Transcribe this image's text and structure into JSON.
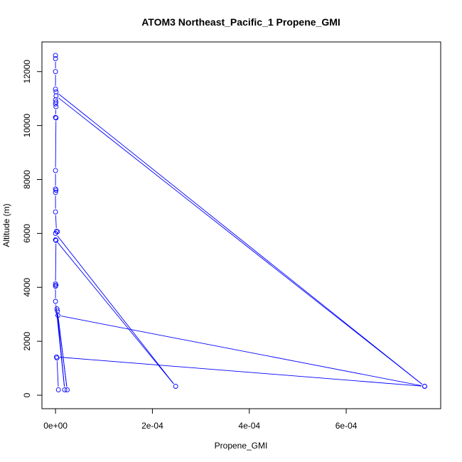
{
  "chart_data": {
    "type": "scatter",
    "title": "ATOM3 Northeast_Pacific_1 Propene_GMI",
    "xlabel": "Propene_GMI",
    "ylabel": "Altitude (m)",
    "xlim": [
      -2.8e-05,
      0.000795
    ],
    "ylim": [
      -500,
      13100
    ],
    "x_ticks": [
      0,
      0.0002,
      0.0004,
      0.0006
    ],
    "x_tick_labels": [
      "0e+00",
      "2e-04",
      "4e-04",
      "6e-04"
    ],
    "y_ticks": [
      0,
      2000,
      4000,
      6000,
      8000,
      10000,
      12000
    ],
    "y_tick_labels": [
      "0",
      "2000",
      "4000",
      "6000",
      "8000",
      "10000",
      "12000"
    ],
    "grid": false,
    "series_color": "#0000ff",
    "series": [
      {
        "style": "line+markers",
        "points": [
          {
            "x": 0.0,
            "y": 12600
          },
          {
            "x": 0.0,
            "y": 12480
          },
          {
            "x": 0.0,
            "y": 12000
          },
          {
            "x": 0.0,
            "y": 11350
          },
          {
            "x": 1e-06,
            "y": 11250
          },
          {
            "x": 0.000762,
            "y": 330
          },
          {
            "x": 1e-06,
            "y": 11100
          },
          {
            "x": 0.0,
            "y": 10950
          },
          {
            "x": 1e-06,
            "y": 10870
          },
          {
            "x": 0.0,
            "y": 10800
          },
          {
            "x": 1e-06,
            "y": 10700
          },
          {
            "x": 0.0,
            "y": 10300
          },
          {
            "x": 1e-06,
            "y": 10280
          },
          {
            "x": 0.0,
            "y": 8330
          },
          {
            "x": 0.0,
            "y": 7650
          },
          {
            "x": 1e-06,
            "y": 7600
          },
          {
            "x": 0.0,
            "y": 7520
          },
          {
            "x": 0.0,
            "y": 6800
          },
          {
            "x": 2e-06,
            "y": 6080
          },
          {
            "x": 4e-06,
            "y": 6060
          },
          {
            "x": 0.0,
            "y": 6000
          },
          {
            "x": 0.000248,
            "y": 330
          },
          {
            "x": 0.0,
            "y": 5760
          },
          {
            "x": 1e-06,
            "y": 5740
          },
          {
            "x": 0.0,
            "y": 4130
          },
          {
            "x": 1e-06,
            "y": 4080
          },
          {
            "x": 0.0,
            "y": 4040
          },
          {
            "x": 0.0,
            "y": 3480
          },
          {
            "x": 1.9e-05,
            "y": 200
          },
          {
            "x": 3e-06,
            "y": 3200
          },
          {
            "x": 4e-06,
            "y": 3120
          },
          {
            "x": 2.4e-05,
            "y": 200
          },
          {
            "x": 5e-06,
            "y": 2960
          },
          {
            "x": 0.000762,
            "y": 330
          },
          {
            "x": 2e-06,
            "y": 1420
          },
          {
            "x": 3e-06,
            "y": 1380
          },
          {
            "x": 6e-06,
            "y": 200
          }
        ]
      }
    ]
  }
}
